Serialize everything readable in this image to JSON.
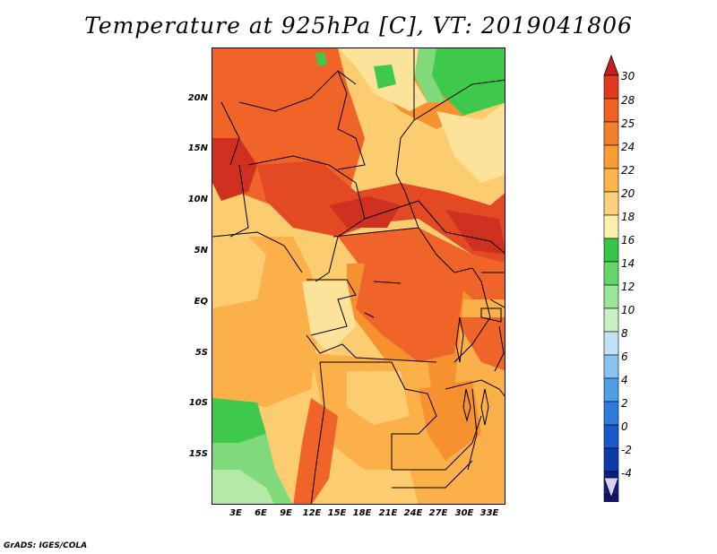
{
  "title": "Temperature at 925hPa [C], VT: 2019041806",
  "credit": "GrADS: IGES/COLA",
  "lat_ticks": [
    "20N",
    "15N",
    "10N",
    "5N",
    "EQ",
    "5S",
    "10S",
    "15S"
  ],
  "lon_ticks": [
    "3E",
    "6E",
    "9E",
    "12E",
    "15E",
    "18E",
    "21E",
    "24E",
    "27E",
    "30E",
    "33E"
  ],
  "colorbar": {
    "labels": [
      "30",
      "28",
      "25",
      "24",
      "22",
      "20",
      "18",
      "16",
      "14",
      "12",
      "10",
      "8",
      "6",
      "4",
      "2",
      "0",
      "-2",
      "-4"
    ],
    "colors": [
      "#e03a1e",
      "#f06020",
      "#f57e28",
      "#fb9c30",
      "#fcb548",
      "#fdd07a",
      "#fcf0a8",
      "#38c446",
      "#66d66a",
      "#99e694",
      "#c8f0c2",
      "#c0e2f6",
      "#88c4ef",
      "#4f9fe6",
      "#2f7ade",
      "#1858c8",
      "#0f3aa8",
      "#0b1f85",
      "#161070"
    ],
    "top_cap_color": "#c81e1e",
    "bottom_cap_color": "#d8d0f0"
  },
  "map_colors": {
    "deep_red": "#d03020",
    "red": "#e34a24",
    "orange_red": "#f0642a",
    "orange": "#f7902f",
    "light_orange": "#fbb04a",
    "pale_orange": "#fccc70",
    "yellow": "#fde39a",
    "green": "#3fc94c",
    "light_green": "#80da7c",
    "pale_green": "#b4eaa8",
    "border": "#000000"
  }
}
